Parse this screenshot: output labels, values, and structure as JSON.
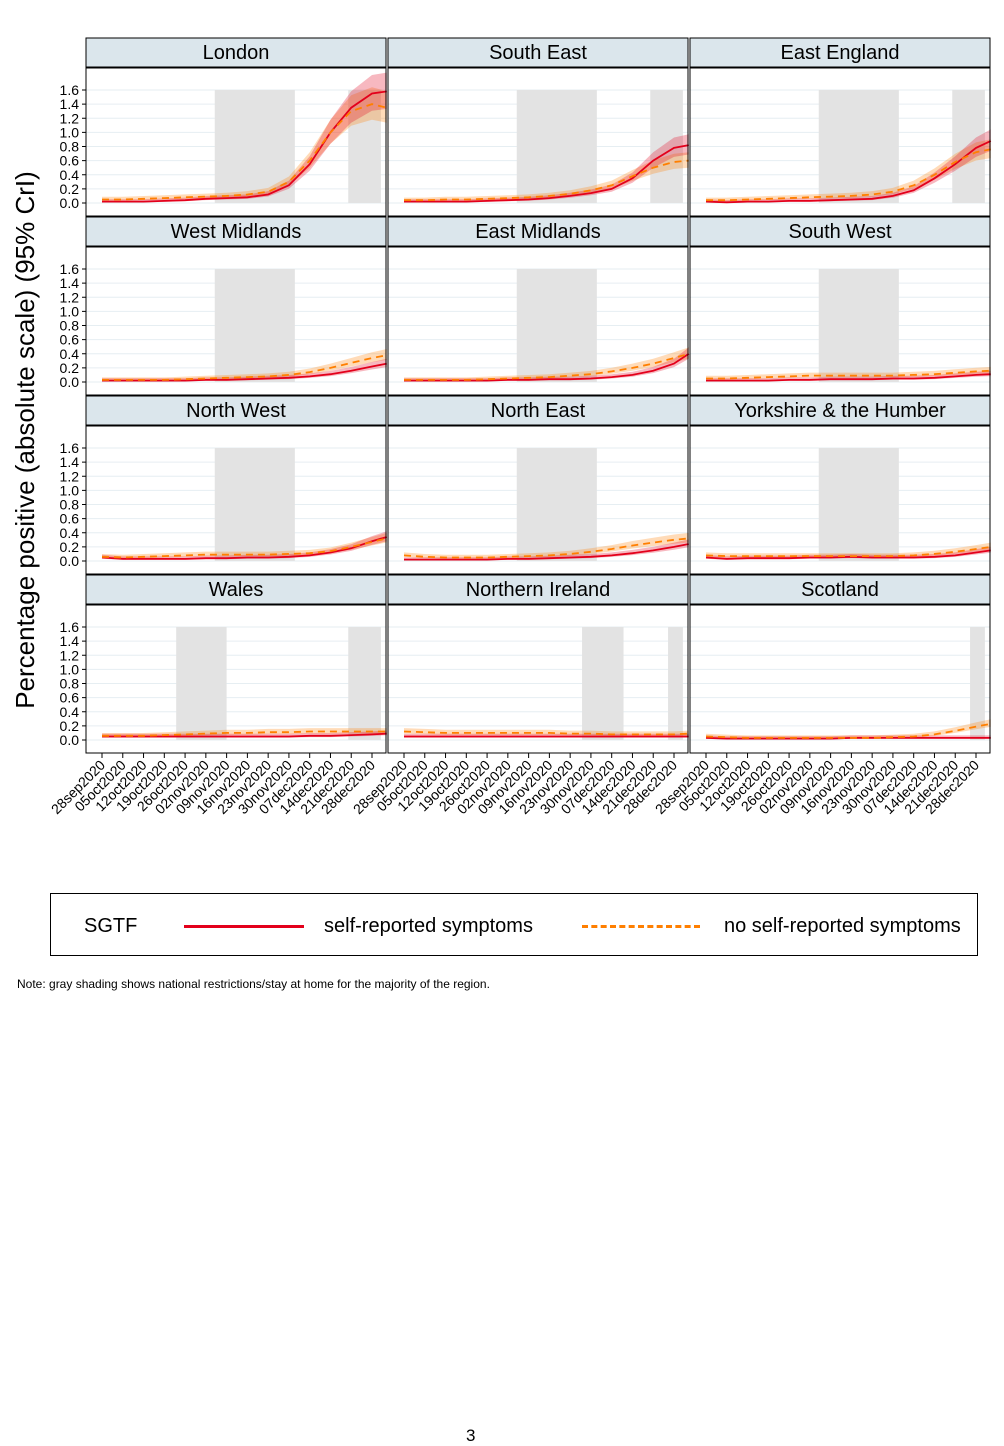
{
  "chart_data": {
    "type": "line",
    "ylabel": "Percentage positive (absolute scale) (95% CrI)",
    "ylim": [
      0,
      1.6
    ],
    "yticks": [
      "0.0",
      "0.2",
      "0.4",
      "0.6",
      "0.8",
      "1.0",
      "1.2",
      "1.4",
      "1.6"
    ],
    "xticks": [
      "28sep2020",
      "05oct2020",
      "12oct2020",
      "19oct2020",
      "26oct2020",
      "02nov2020",
      "09nov2020",
      "16nov2020",
      "23nov2020",
      "30nov2020",
      "07dec2020",
      "14dec2020",
      "21dec2020",
      "28dec2020"
    ],
    "x": [
      "28sep2020",
      "05oct2020",
      "12oct2020",
      "19oct2020",
      "26oct2020",
      "02nov2020",
      "09nov2020",
      "16nov2020",
      "23nov2020",
      "30nov2020",
      "07dec2020",
      "14dec2020",
      "21dec2020",
      "28dec2020",
      "02jan2021"
    ],
    "colors": {
      "symptoms": "#e3001b",
      "no_symptoms": "#ff7f00",
      "strip": "#dbe6ec",
      "shade": "#e3e3e3"
    },
    "legend": {
      "title": "SGTF",
      "series_names": [
        "self-reported symptoms",
        "no self-reported symptoms"
      ],
      "position": "bottom"
    },
    "panels": [
      {
        "title": "London",
        "shading": [
          [
            "05nov2020",
            "02dec2020"
          ],
          [
            "20dec2020",
            "31dec2020"
          ]
        ],
        "symptoms": [
          0.02,
          0.02,
          0.02,
          0.03,
          0.04,
          0.06,
          0.07,
          0.08,
          0.12,
          0.25,
          0.55,
          1.0,
          1.35,
          1.55,
          1.58
        ],
        "no_symptoms": [
          0.05,
          0.05,
          0.06,
          0.07,
          0.08,
          0.09,
          0.1,
          0.12,
          0.16,
          0.3,
          0.6,
          1.0,
          1.3,
          1.4,
          1.35
        ]
      },
      {
        "title": "South East",
        "shading": [
          [
            "05nov2020",
            "02dec2020"
          ],
          [
            "20dec2020",
            "31dec2020"
          ]
        ],
        "symptoms": [
          0.02,
          0.02,
          0.02,
          0.02,
          0.03,
          0.04,
          0.05,
          0.07,
          0.1,
          0.14,
          0.2,
          0.35,
          0.6,
          0.78,
          0.82
        ],
        "no_symptoms": [
          0.04,
          0.04,
          0.05,
          0.05,
          0.06,
          0.07,
          0.08,
          0.1,
          0.13,
          0.18,
          0.25,
          0.38,
          0.5,
          0.58,
          0.6
        ]
      },
      {
        "title": "East England",
        "shading": [
          [
            "05nov2020",
            "02dec2020"
          ],
          [
            "20dec2020",
            "31dec2020"
          ]
        ],
        "symptoms": [
          0.02,
          0.01,
          0.02,
          0.02,
          0.03,
          0.03,
          0.04,
          0.05,
          0.06,
          0.1,
          0.18,
          0.35,
          0.55,
          0.78,
          0.88
        ],
        "no_symptoms": [
          0.04,
          0.04,
          0.05,
          0.06,
          0.07,
          0.08,
          0.09,
          0.1,
          0.12,
          0.16,
          0.25,
          0.4,
          0.58,
          0.72,
          0.76
        ]
      },
      {
        "title": "West Midlands",
        "shading": [
          [
            "05nov2020",
            "02dec2020"
          ]
        ],
        "symptoms": [
          0.02,
          0.02,
          0.02,
          0.02,
          0.02,
          0.03,
          0.03,
          0.04,
          0.05,
          0.06,
          0.08,
          0.11,
          0.16,
          0.22,
          0.26
        ],
        "no_symptoms": [
          0.03,
          0.03,
          0.03,
          0.03,
          0.04,
          0.05,
          0.06,
          0.07,
          0.08,
          0.1,
          0.14,
          0.2,
          0.27,
          0.34,
          0.38
        ]
      },
      {
        "title": "East Midlands",
        "shading": [
          [
            "05nov2020",
            "02dec2020"
          ]
        ],
        "symptoms": [
          0.02,
          0.02,
          0.02,
          0.02,
          0.02,
          0.03,
          0.03,
          0.04,
          0.04,
          0.05,
          0.07,
          0.1,
          0.16,
          0.26,
          0.4
        ],
        "no_symptoms": [
          0.03,
          0.03,
          0.03,
          0.03,
          0.04,
          0.05,
          0.06,
          0.07,
          0.09,
          0.11,
          0.15,
          0.2,
          0.26,
          0.34,
          0.4
        ]
      },
      {
        "title": "South West",
        "shading": [
          [
            "05nov2020",
            "02dec2020"
          ]
        ],
        "symptoms": [
          0.02,
          0.02,
          0.02,
          0.02,
          0.03,
          0.03,
          0.04,
          0.04,
          0.04,
          0.05,
          0.05,
          0.06,
          0.08,
          0.1,
          0.11
        ],
        "no_symptoms": [
          0.05,
          0.05,
          0.06,
          0.07,
          0.08,
          0.09,
          0.09,
          0.09,
          0.09,
          0.09,
          0.1,
          0.11,
          0.13,
          0.15,
          0.16
        ]
      },
      {
        "title": "North West",
        "shading": [
          [
            "05nov2020",
            "02dec2020"
          ]
        ],
        "symptoms": [
          0.05,
          0.03,
          0.03,
          0.03,
          0.03,
          0.04,
          0.04,
          0.05,
          0.05,
          0.06,
          0.08,
          0.12,
          0.18,
          0.28,
          0.34
        ],
        "no_symptoms": [
          0.06,
          0.05,
          0.06,
          0.07,
          0.08,
          0.09,
          0.09,
          0.09,
          0.09,
          0.1,
          0.11,
          0.14,
          0.2,
          0.27,
          0.32
        ]
      },
      {
        "title": "North East",
        "shading": [
          [
            "05nov2020",
            "02dec2020"
          ]
        ],
        "symptoms": [
          0.02,
          0.02,
          0.02,
          0.02,
          0.02,
          0.03,
          0.03,
          0.04,
          0.05,
          0.06,
          0.08,
          0.11,
          0.15,
          0.2,
          0.24
        ],
        "no_symptoms": [
          0.08,
          0.06,
          0.05,
          0.05,
          0.05,
          0.06,
          0.07,
          0.08,
          0.1,
          0.13,
          0.17,
          0.22,
          0.26,
          0.3,
          0.32
        ]
      },
      {
        "title": "Yorkshire & the Humber",
        "shading": [
          [
            "05nov2020",
            "02dec2020"
          ]
        ],
        "symptoms": [
          0.05,
          0.03,
          0.04,
          0.04,
          0.04,
          0.05,
          0.05,
          0.06,
          0.05,
          0.05,
          0.05,
          0.06,
          0.08,
          0.12,
          0.15
        ],
        "no_symptoms": [
          0.08,
          0.07,
          0.07,
          0.07,
          0.07,
          0.07,
          0.07,
          0.07,
          0.07,
          0.07,
          0.08,
          0.1,
          0.13,
          0.17,
          0.2
        ]
      },
      {
        "title": "Wales",
        "shading": [
          [
            "23oct2020",
            "09nov2020"
          ],
          [
            "20dec2020",
            "31dec2020"
          ]
        ],
        "symptoms": [
          0.05,
          0.05,
          0.05,
          0.05,
          0.05,
          0.05,
          0.05,
          0.05,
          0.05,
          0.05,
          0.06,
          0.06,
          0.07,
          0.08,
          0.09
        ],
        "no_symptoms": [
          0.06,
          0.06,
          0.06,
          0.07,
          0.08,
          0.09,
          0.1,
          0.1,
          0.11,
          0.11,
          0.12,
          0.12,
          0.12,
          0.12,
          0.12
        ]
      },
      {
        "title": "Northern Ireland",
        "shading": [
          [
            "27nov2020",
            "11dec2020"
          ],
          [
            "26dec2020",
            "31dec2020"
          ]
        ],
        "symptoms": [
          0.05,
          0.05,
          0.05,
          0.05,
          0.05,
          0.05,
          0.05,
          0.05,
          0.05,
          0.05,
          0.05,
          0.05,
          0.05,
          0.05,
          0.05
        ],
        "no_symptoms": [
          0.12,
          0.11,
          0.1,
          0.1,
          0.1,
          0.1,
          0.1,
          0.1,
          0.09,
          0.09,
          0.08,
          0.08,
          0.08,
          0.08,
          0.09
        ]
      },
      {
        "title": "Scotland",
        "shading": [
          [
            "26dec2020",
            "31dec2020"
          ]
        ],
        "symptoms": [
          0.03,
          0.02,
          0.02,
          0.02,
          0.02,
          0.02,
          0.02,
          0.03,
          0.03,
          0.03,
          0.03,
          0.03,
          0.03,
          0.03,
          0.03
        ],
        "no_symptoms": [
          0.05,
          0.04,
          0.03,
          0.03,
          0.03,
          0.03,
          0.03,
          0.03,
          0.03,
          0.04,
          0.05,
          0.08,
          0.13,
          0.19,
          0.23
        ]
      }
    ]
  },
  "note": "Note: gray shading shows national restrictions/stay at home for the majority of the region.",
  "page_number": "3"
}
